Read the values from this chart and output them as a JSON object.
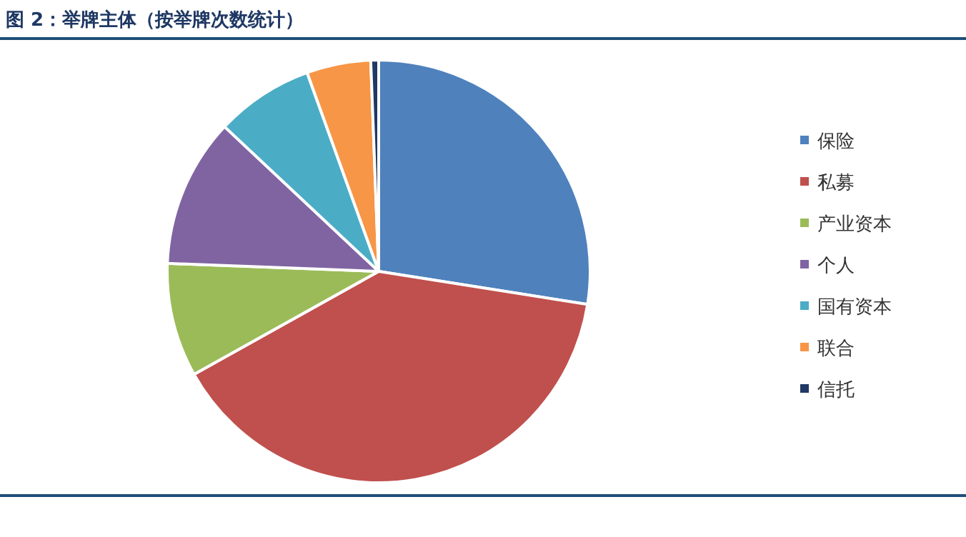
{
  "chart_data": {
    "type": "pie",
    "title": "图 2：举牌主体（按举牌次数统计）",
    "categories": [
      "保险",
      "私募",
      "产业资本",
      "个人",
      "国有资本",
      "联合",
      "信托"
    ],
    "values": [
      27.5,
      39.4,
      8.7,
      11.4,
      7.5,
      4.9,
      0.6
    ],
    "colors": [
      "#4f81bd",
      "#c0504d",
      "#9bbb59",
      "#8064a2",
      "#4bacc6",
      "#f79646",
      "#1f3864"
    ],
    "legend": "right"
  }
}
